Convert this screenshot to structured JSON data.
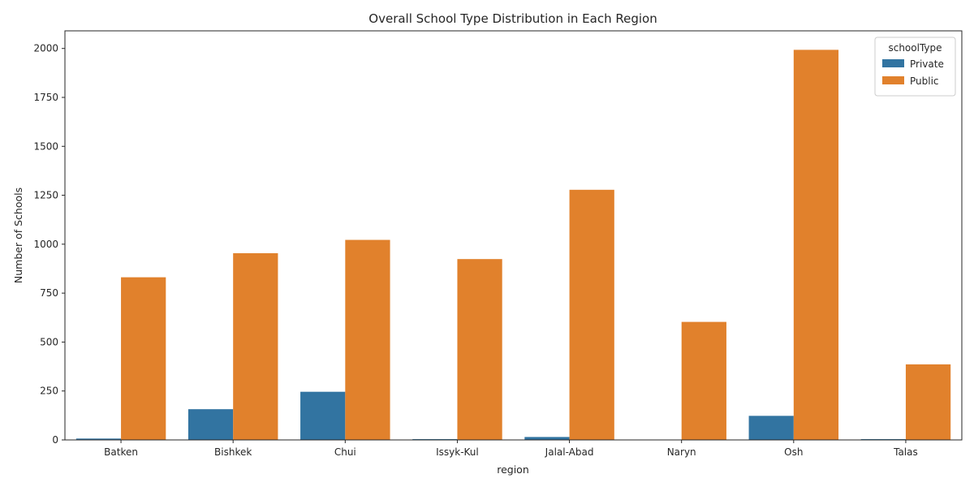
{
  "chart_data": {
    "type": "bar",
    "title": "Overall School Type Distribution in Each Region",
    "xlabel": "region",
    "ylabel": "Number of Schools",
    "categories": [
      "Batken",
      "Bishkek",
      "Chui",
      "Issyk-Kul",
      "Jalal-Abad",
      "Naryn",
      "Osh",
      "Talas"
    ],
    "series": [
      {
        "name": "Private",
        "color": "#3274a1",
        "values": [
          7,
          157,
          246,
          4,
          15,
          0,
          123,
          4
        ]
      },
      {
        "name": "Public",
        "color": "#e1812c",
        "values": [
          831,
          954,
          1022,
          924,
          1278,
          603,
          1993,
          386
        ]
      }
    ],
    "ylim": [
      0,
      2090
    ],
    "yticks": [
      0,
      250,
      500,
      750,
      1000,
      1250,
      1500,
      1750,
      2000
    ],
    "grid": false,
    "legend": {
      "title": "schoolType",
      "placement": "top-right"
    }
  }
}
